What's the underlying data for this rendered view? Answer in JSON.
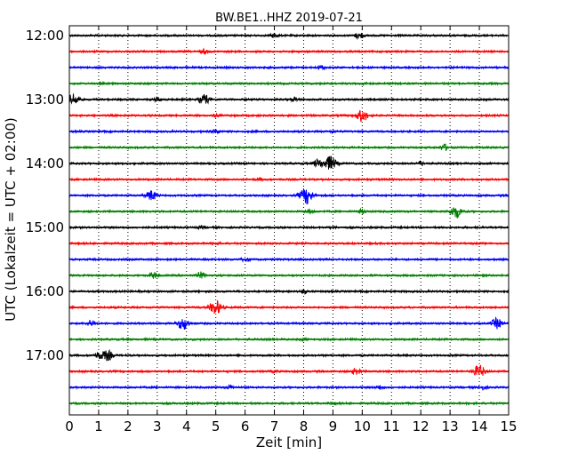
{
  "chart_data": {
    "type": "line",
    "title": "BW.BE1..HHZ 2019-07-21",
    "xlabel": "Zeit  [min]",
    "ylabel": "UTC (Lokalzeit = UTC + 02:00)",
    "xlim": [
      0,
      15
    ],
    "x_ticks": [
      "0",
      "1",
      "2",
      "3",
      "4",
      "5",
      "6",
      "7",
      "8",
      "9",
      "10",
      "11",
      "12",
      "13",
      "14",
      "15"
    ],
    "y_tick_labels": [
      "12:00",
      "13:00",
      "14:00",
      "15:00",
      "16:00",
      "17:00"
    ],
    "grid_vertical_dotted": true,
    "trace_colors": [
      "#000000",
      "#ff0000",
      "#0000ff",
      "#008000"
    ],
    "traces": [
      {
        "start": "12:00",
        "events": [
          [
            7.0,
            2
          ],
          [
            9.9,
            3
          ]
        ]
      },
      {
        "start": "12:15",
        "events": [
          [
            4.6,
            2
          ]
        ]
      },
      {
        "start": "12:30",
        "events": [
          [
            8.6,
            2
          ]
        ]
      },
      {
        "start": "12:45",
        "events": [
          [
            10.0,
            1
          ]
        ]
      },
      {
        "start": "13:00",
        "events": [
          [
            0.15,
            6
          ],
          [
            3.0,
            2
          ],
          [
            4.6,
            5
          ],
          [
            7.7,
            2
          ]
        ]
      },
      {
        "start": "13:15",
        "events": [
          [
            10.0,
            6
          ],
          [
            5.0,
            1
          ]
        ]
      },
      {
        "start": "13:30",
        "events": [
          [
            5.0,
            2
          ],
          [
            9.0,
            1
          ]
        ]
      },
      {
        "start": "13:45",
        "events": [
          [
            12.8,
            3
          ]
        ]
      },
      {
        "start": "14:00",
        "events": [
          [
            8.5,
            4
          ],
          [
            8.9,
            7
          ],
          [
            12.0,
            2
          ]
        ]
      },
      {
        "start": "14:15",
        "events": [
          [
            6.5,
            1
          ]
        ]
      },
      {
        "start": "14:30",
        "events": [
          [
            2.8,
            5
          ],
          [
            8.1,
            8
          ]
        ]
      },
      {
        "start": "14:45",
        "events": [
          [
            8.2,
            2
          ],
          [
            10.0,
            2
          ],
          [
            13.2,
            6
          ]
        ]
      },
      {
        "start": "15:00",
        "events": [
          [
            4.5,
            1
          ],
          [
            9.0,
            1
          ]
        ]
      },
      {
        "start": "15:15",
        "events": [
          [
            5.0,
            1
          ]
        ]
      },
      {
        "start": "15:30",
        "events": [
          [
            6.0,
            2
          ]
        ]
      },
      {
        "start": "15:45",
        "events": [
          [
            2.9,
            3
          ],
          [
            4.5,
            3
          ]
        ]
      },
      {
        "start": "16:00",
        "events": [
          [
            8.0,
            2
          ]
        ]
      },
      {
        "start": "16:15",
        "events": [
          [
            5.0,
            7
          ]
        ]
      },
      {
        "start": "16:30",
        "events": [
          [
            0.75,
            3
          ],
          [
            3.9,
            6
          ],
          [
            14.6,
            5
          ]
        ]
      },
      {
        "start": "16:45",
        "events": [
          [
            8.0,
            1
          ]
        ]
      },
      {
        "start": "17:00",
        "events": [
          [
            1.0,
            3
          ],
          [
            1.3,
            5
          ]
        ]
      },
      {
        "start": "17:15",
        "events": [
          [
            9.8,
            3
          ],
          [
            14.0,
            6
          ],
          [
            7.0,
            1
          ]
        ]
      },
      {
        "start": "17:30",
        "events": [
          [
            5.5,
            2
          ],
          [
            10.6,
            2
          ],
          [
            14.1,
            2
          ]
        ]
      },
      {
        "start": "17:45",
        "events": [
          [
            9.0,
            1
          ]
        ]
      }
    ]
  }
}
